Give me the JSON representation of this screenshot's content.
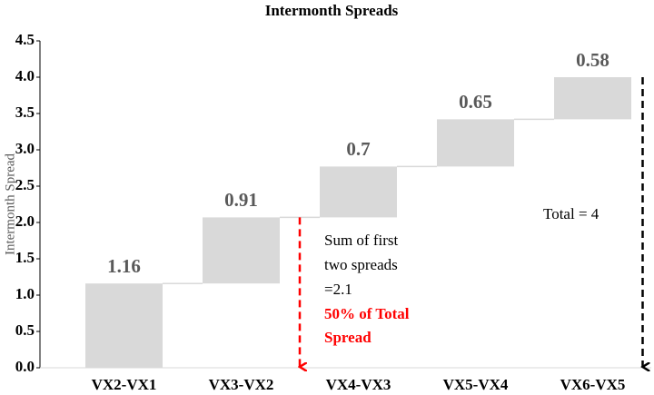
{
  "chart_data": {
    "type": "waterfall",
    "title": "Intermonth Spreads",
    "y_label": "Intermonth Spread",
    "categories": [
      "VX2-VX1",
      "VX3-VX2",
      "VX4-VX3",
      "VX5-VX4",
      "VX6-VX5"
    ],
    "values": [
      1.16,
      0.91,
      0.7,
      0.65,
      0.58
    ],
    "color": "#d9d9d9",
    "ylim": [
      0,
      4.5
    ],
    "yticks": [
      {
        "value": 0,
        "label": "0.0"
      },
      0.5,
      {
        "value": 1,
        "label": "1.0"
      },
      1.5,
      {
        "value": 2,
        "label": "2.0"
      },
      2.5,
      {
        "value": 3,
        "label": "3.0"
      },
      3.5,
      {
        "value": 4,
        "label": "4.0"
      },
      4.5
    ],
    "annotations": [
      "Sum of first",
      "two spreads",
      "=2.1",
      "50% of Total",
      "Spread",
      "Total = 4"
    ]
  }
}
